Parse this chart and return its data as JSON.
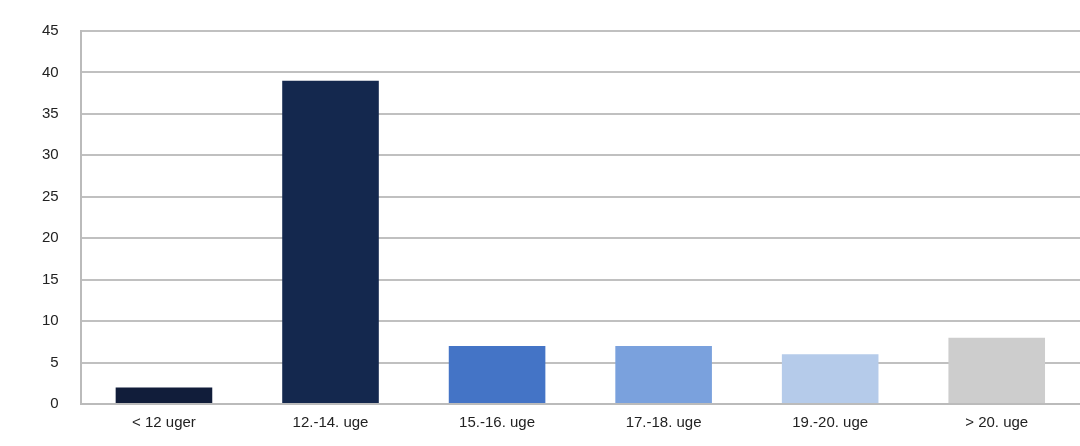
{
  "chart_data": {
    "type": "bar",
    "categories": [
      "< 12 uger",
      "12.-14. uge",
      "15.-16. uge",
      "17.-18. uge",
      "19.-20. uge",
      "> 20. uge"
    ],
    "values": [
      2,
      39,
      7,
      7,
      6,
      8
    ],
    "colors": [
      "#111d3a",
      "#14284e",
      "#4474c6",
      "#7aa1dd",
      "#b5cbea",
      "#cdcdcd"
    ],
    "ylim": [
      0,
      45
    ],
    "yticks": [
      0,
      5,
      10,
      15,
      20,
      25,
      30,
      35,
      40,
      45
    ],
    "grid": "y",
    "legend": false
  }
}
